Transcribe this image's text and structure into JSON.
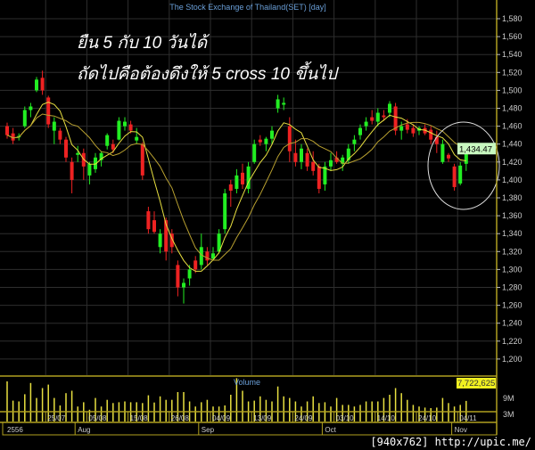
{
  "header": {
    "title": "The Stock Exchange of Thailand(SET) [day]"
  },
  "annotations": {
    "line1": "ยืน 5 กับ 10 วันได้",
    "line2": "ถัดไปคือต้องดึงให้ 5  cross 10 ขึ้นไป"
  },
  "watermark": "[940x762] http://upic.me/",
  "colors": {
    "up": "#22ee22",
    "down": "#ee2222",
    "ma_fast": "#e8e040",
    "ma_slow": "#b8a030",
    "volume": "#e8e040",
    "axis": "#b0a020",
    "grid": "#2e2e2e",
    "title": "#6a9fd8"
  },
  "chart_data": {
    "type": "candlestick",
    "title": "The Stock Exchange of Thailand(SET) [day]",
    "ylim": [
      1180,
      1600
    ],
    "y_ticks": [
      "1,200",
      "1,220",
      "1,240",
      "1,260",
      "1,280",
      "1,300",
      "1,320",
      "1,340",
      "1,360",
      "1,380",
      "1,400",
      "1,420",
      "1,440",
      "1,460",
      "1,480",
      "1,500",
      "1,520",
      "1,540",
      "1,560",
      "1,580"
    ],
    "y_tick_values": [
      1200,
      1220,
      1240,
      1260,
      1280,
      1300,
      1320,
      1340,
      1360,
      1380,
      1400,
      1420,
      1440,
      1460,
      1480,
      1500,
      1520,
      1540,
      1560,
      1580
    ],
    "last_price_label": "1,434.47",
    "moving_averages": [
      5,
      10
    ],
    "ohlc": [
      [
        1460,
        1464,
        1446,
        1450
      ],
      [
        1452,
        1458,
        1440,
        1444
      ],
      [
        1448,
        1452,
        1444,
        1449
      ],
      [
        1460,
        1482,
        1458,
        1478
      ],
      [
        1478,
        1486,
        1470,
        1482
      ],
      [
        1500,
        1515,
        1498,
        1512
      ],
      [
        1514,
        1522,
        1495,
        1500
      ],
      [
        1492,
        1494,
        1458,
        1462
      ],
      [
        1455,
        1470,
        1440,
        1465
      ],
      [
        1455,
        1458,
        1440,
        1445
      ],
      [
        1445,
        1448,
        1420,
        1425
      ],
      [
        1420,
        1425,
        1385,
        1400
      ],
      [
        1428,
        1438,
        1420,
        1430
      ],
      [
        1430,
        1435,
        1400,
        1415
      ],
      [
        1405,
        1420,
        1395,
        1418
      ],
      [
        1412,
        1430,
        1408,
        1425
      ],
      [
        1422,
        1432,
        1415,
        1430
      ],
      [
        1438,
        1452,
        1434,
        1450
      ],
      [
        1440,
        1445,
        1430,
        1434
      ],
      [
        1445,
        1470,
        1444,
        1466
      ],
      [
        1460,
        1470,
        1455,
        1465
      ],
      [
        1462,
        1466,
        1452,
        1455
      ],
      [
        1444,
        1458,
        1440,
        1448
      ],
      [
        1440,
        1442,
        1400,
        1405
      ],
      [
        1365,
        1370,
        1340,
        1345
      ],
      [
        1355,
        1365,
        1340,
        1342
      ],
      [
        1325,
        1345,
        1318,
        1340
      ],
      [
        1355,
        1358,
        1310,
        1320
      ],
      [
        1340,
        1345,
        1318,
        1325
      ],
      [
        1305,
        1310,
        1270,
        1280
      ],
      [
        1280,
        1290,
        1262,
        1285
      ],
      [
        1290,
        1305,
        1282,
        1300
      ],
      [
        1310,
        1315,
        1296,
        1300
      ],
      [
        1305,
        1340,
        1300,
        1325
      ],
      [
        1320,
        1325,
        1305,
        1310
      ],
      [
        1312,
        1325,
        1310,
        1318
      ],
      [
        1320,
        1345,
        1318,
        1340
      ],
      [
        1345,
        1390,
        1340,
        1385
      ],
      [
        1395,
        1400,
        1370,
        1388
      ],
      [
        1390,
        1412,
        1385,
        1405
      ],
      [
        1408,
        1418,
        1390,
        1395
      ],
      [
        1390,
        1420,
        1385,
        1415
      ],
      [
        1420,
        1445,
        1418,
        1440
      ],
      [
        1445,
        1450,
        1438,
        1442
      ],
      [
        1440,
        1448,
        1432,
        1446
      ],
      [
        1446,
        1460,
        1440,
        1455
      ],
      [
        1480,
        1495,
        1475,
        1490
      ],
      [
        1484,
        1492,
        1478,
        1486
      ],
      [
        1460,
        1470,
        1420,
        1432
      ],
      [
        1430,
        1445,
        1415,
        1420
      ],
      [
        1420,
        1440,
        1412,
        1435
      ],
      [
        1430,
        1435,
        1410,
        1415
      ],
      [
        1420,
        1432,
        1405,
        1410
      ],
      [
        1415,
        1418,
        1385,
        1390
      ],
      [
        1395,
        1420,
        1388,
        1415
      ],
      [
        1415,
        1430,
        1410,
        1422
      ],
      [
        1425,
        1432,
        1418,
        1420
      ],
      [
        1418,
        1428,
        1410,
        1425
      ],
      [
        1422,
        1440,
        1418,
        1435
      ],
      [
        1440,
        1450,
        1432,
        1445
      ],
      [
        1450,
        1462,
        1445,
        1458
      ],
      [
        1460,
        1470,
        1455,
        1465
      ],
      [
        1470,
        1478,
        1462,
        1466
      ],
      [
        1465,
        1480,
        1460,
        1475
      ],
      [
        1472,
        1478,
        1466,
        1470
      ],
      [
        1475,
        1488,
        1470,
        1485
      ],
      [
        1482,
        1486,
        1450,
        1455
      ],
      [
        1455,
        1465,
        1445,
        1460
      ],
      [
        1462,
        1468,
        1452,
        1456
      ],
      [
        1458,
        1462,
        1448,
        1452
      ],
      [
        1455,
        1460,
        1450,
        1458
      ],
      [
        1458,
        1462,
        1450,
        1452
      ],
      [
        1456,
        1460,
        1440,
        1445
      ],
      [
        1448,
        1455,
        1430,
        1440
      ],
      [
        1420,
        1445,
        1418,
        1440
      ],
      [
        1428,
        1430,
        1420,
        1424
      ],
      [
        1415,
        1418,
        1388,
        1392
      ],
      [
        1396,
        1420,
        1394,
        1416
      ],
      [
        1418,
        1436,
        1410,
        1434.47
      ]
    ],
    "volume": {
      "label": "Volume",
      "unit": "M",
      "y_ticks": [
        "9M",
        "3M"
      ],
      "y_tick_values": [
        9,
        3
      ],
      "last_value_label": "7,722,625",
      "values": [
        15,
        7.8,
        7.5,
        10.2,
        14.4,
        8.8,
        12.5,
        13.8,
        8.8,
        6,
        10.6,
        11.5,
        5.6,
        7.2,
        4.4,
        8.8,
        5.6,
        8.1,
        6.9,
        7.2,
        7.5,
        7.2,
        7.2,
        6.9,
        9.8,
        7.1,
        9.4,
        8.1,
        8.1,
        11,
        11,
        7.5,
        5.6,
        7.2,
        8.1,
        5.6,
        5.6,
        6,
        10,
        16.2,
        11.5,
        7.5,
        7.8,
        9.4,
        8.1,
        7.5,
        13.1,
        9.4,
        8.8,
        7.5,
        5.6,
        7.5,
        9.4,
        6.9,
        7.2,
        5.6,
        8.8,
        6.2,
        6.2,
        5.6,
        6.2,
        7.5,
        7.5,
        7.5,
        8.8,
        10,
        12.5,
        10.6,
        8.1,
        6.2,
        5.6,
        5.2,
        5,
        5.2,
        8.8,
        6.9,
        5.6,
        6.2,
        7.7
      ]
    },
    "x_ticks": [
      {
        "index": 7,
        "label": "25/07"
      },
      {
        "index": 14,
        "label": "05/08"
      },
      {
        "index": 21,
        "label": "15/08"
      },
      {
        "index": 28,
        "label": "26/08"
      },
      {
        "index": 35,
        "label": "04/09"
      },
      {
        "index": 42,
        "label": "13/09"
      },
      {
        "index": 49,
        "label": "24/09"
      },
      {
        "index": 56,
        "label": "03/10"
      },
      {
        "index": 63,
        "label": "14/10"
      },
      {
        "index": 70,
        "label": "24/10"
      },
      {
        "index": 77,
        "label": "04/11"
      }
    ],
    "month_labels": [
      {
        "index": 0,
        "label": "2556"
      },
      {
        "index": 12,
        "label": "Aug"
      },
      {
        "index": 33,
        "label": "Sep"
      },
      {
        "index": 54,
        "label": "Oct"
      },
      {
        "index": 76,
        "label": "Nov"
      }
    ],
    "grid": true
  }
}
